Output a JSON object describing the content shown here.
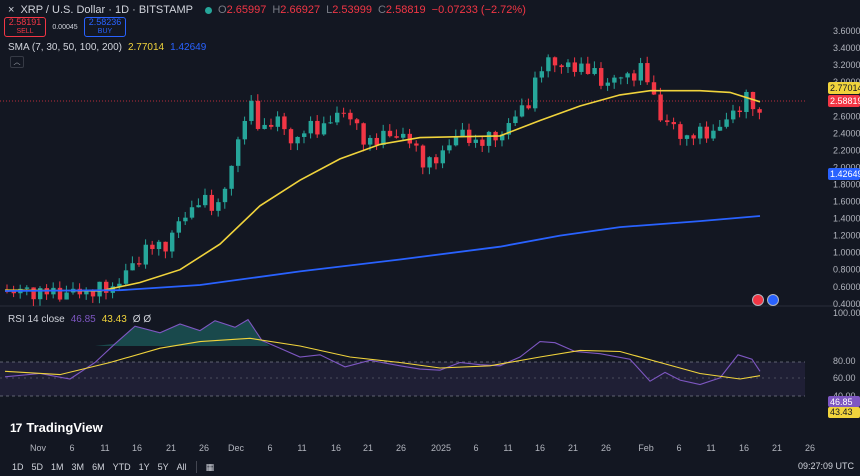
{
  "header": {
    "collapse_icon": "×",
    "symbol": "XRP / U.S. Dollar · 1D · BITSTAMP",
    "ohlc": {
      "open_key": "O",
      "open": "2.65997",
      "high_key": "H",
      "high": "2.66927",
      "low_key": "L",
      "low": "2.53999",
      "close_key": "C",
      "close": "2.58819",
      "change": "−0.07233 (−2.72%)"
    },
    "sell_price": "2.58191",
    "sell_label": "SELL",
    "spread": "0.00045",
    "buy_price": "2.58236",
    "buy_label": "BUY"
  },
  "indicator": {
    "name": "SMA (7, 30, 50, 100, 200)",
    "value1": "2.77014",
    "value2": "1.42649"
  },
  "price_axis": {
    "ticks": [
      "3.60000",
      "3.40000",
      "3.20000",
      "3.00000",
      "2.80000",
      "2.60000",
      "2.40000",
      "2.20000",
      "2.00000",
      "1.80000",
      "1.60000",
      "1.40000",
      "1.20000",
      "1.00000",
      "0.80000",
      "0.60000",
      "0.40000"
    ],
    "sma_tag": "2.77014",
    "price_tag": "2.58819",
    "sma200_tag": "1.42649"
  },
  "rsi": {
    "name": "RSI 14 close",
    "value": "46.85",
    "ma_value": "43.43",
    "extra": "Ø Ø",
    "ticks": [
      "100.00",
      "80.00",
      "60.00",
      "40.00"
    ],
    "tag_value": "46.85",
    "tag_ma": "43.43"
  },
  "time_axis": {
    "labels": [
      "Nov",
      "6",
      "11",
      "16",
      "21",
      "26",
      "Dec",
      "6",
      "11",
      "16",
      "21",
      "26",
      "2025",
      "6",
      "11",
      "16",
      "21",
      "26",
      "Feb",
      "6",
      "11",
      "16",
      "21",
      "26"
    ]
  },
  "branding": {
    "logo_mark": "17",
    "logo_text": "TradingView"
  },
  "bottom_bar": {
    "ranges": [
      "1D",
      "5D",
      "1M",
      "3M",
      "6M",
      "YTD",
      "1Y",
      "5Y",
      "All"
    ],
    "clock": "09:27:09 UTC"
  },
  "colors": {
    "background": "#131722",
    "up": "#26a69a",
    "down": "#f23645",
    "sma_short": "#f0d33c",
    "sma_long": "#2962ff",
    "rsi": "#7e57c2"
  }
}
